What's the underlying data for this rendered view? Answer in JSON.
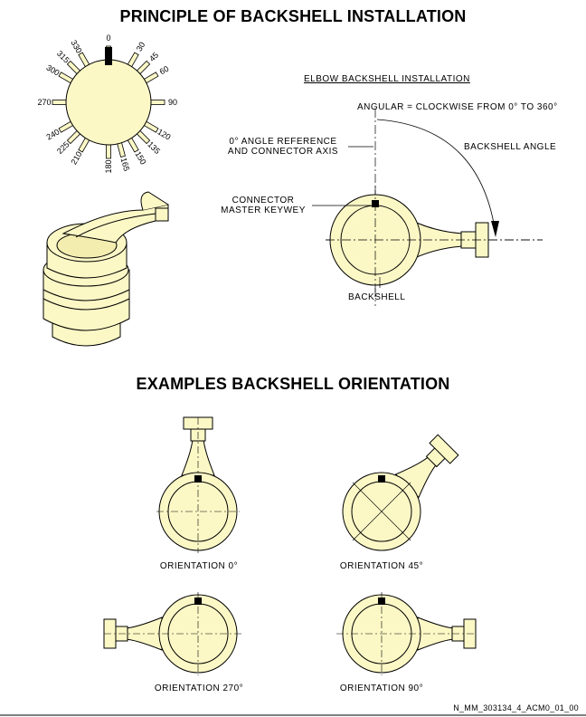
{
  "titles": {
    "main": "PRINCIPLE OF BACKSHELL INSTALLATION",
    "examples": "EXAMPLES BACKSHELL ORIENTATION"
  },
  "dial": {
    "labels": [
      "0",
      "30",
      "45",
      "60",
      "90",
      "120",
      "135",
      "150",
      "165",
      "180",
      "210",
      "225",
      "240",
      "270",
      "300",
      "315",
      "330"
    ]
  },
  "elbow": {
    "subtitle": "ELBOW BACKSHELL INSTALLATION",
    "angular_note": "ANGULAR = CLOCKWISE FROM 0° TO 360°",
    "reference_line1": "0° ANGLE REFERENCE",
    "reference_line2": "AND CONNECTOR AXIS",
    "backshell_angle": "BACKSHELL ANGLE",
    "keyway_line1": "CONNECTOR",
    "keyway_line2": "MASTER KEYWEY",
    "backshell": "BACKSHELL"
  },
  "examples": [
    {
      "label": "ORIENTATION 0°",
      "angle": 0
    },
    {
      "label": "ORIENTATION 45°",
      "angle": 45
    },
    {
      "label": "ORIENTATION 270°",
      "angle": 270
    },
    {
      "label": "ORIENTATION 90°",
      "angle": 90
    }
  ],
  "reference_code": "N_MM_303134_4_ACM0_01_00",
  "colors": {
    "fill": "#fcf8c6",
    "stroke": "#000000"
  }
}
